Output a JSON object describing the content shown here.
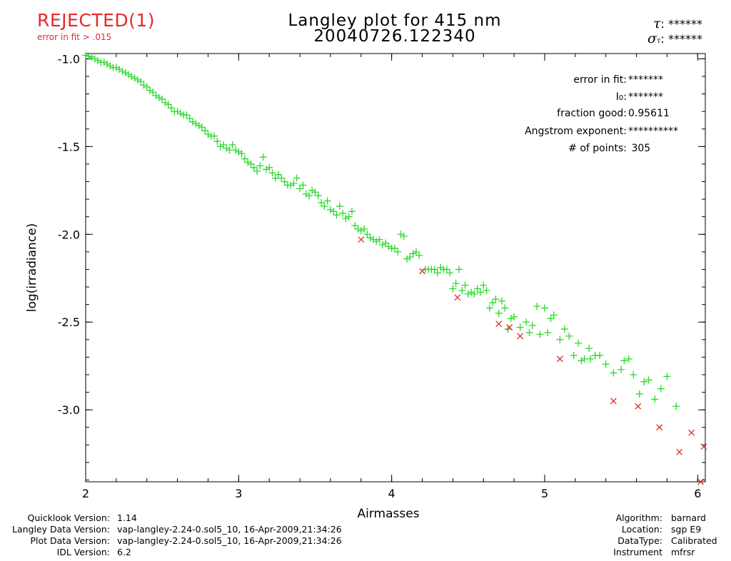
{
  "status": {
    "label": "REJECTED(1)",
    "reason": "error in fit > .015",
    "color": "#e8292b"
  },
  "header": {
    "title_line1": "Langley plot for 415 nm",
    "title_line2": "20040726.122340",
    "tau_label": ":",
    "tau_value": "******",
    "sigma_label": ":",
    "sigma_value": "******"
  },
  "stats": [
    {
      "label": "error in fit:",
      "value": "*******"
    },
    {
      "label": "I0:",
      "value": "*******"
    },
    {
      "label": "fraction good:",
      "value": "0.95611"
    },
    {
      "label": "Angstrom exponent:",
      "value": "**********"
    },
    {
      "label": "# of points:",
      "value": " 305"
    }
  ],
  "footer_left": [
    {
      "label": "Quicklook Version:",
      "value": "1.14"
    },
    {
      "label": "Langley Data Version:",
      "value": "vap-langley-2.24-0.sol5_10, 16-Apr-2009,21:34:26"
    },
    {
      "label": "Plot Data Version:",
      "value": "vap-langley-2.24-0.sol5_10, 16-Apr-2009,21:34:26"
    },
    {
      "label": "IDL Version:",
      "value": "6.2"
    }
  ],
  "footer_right": [
    {
      "label": "Algorithm:",
      "value": "barnard"
    },
    {
      "label": "Location:",
      "value": "sgp E9"
    },
    {
      "label": "DataType:",
      "value": "Calibrated"
    },
    {
      "label": "Instrument",
      "value": "mfrsr"
    }
  ],
  "chart_data": {
    "type": "scatter",
    "xlabel": "Airmasses",
    "ylabel": "log(irradiance)",
    "xlim": [
      2.0,
      6.05
    ],
    "ylim": [
      -3.41,
      -0.97
    ],
    "xticks": [
      2,
      3,
      4,
      5,
      6
    ],
    "yticks": [
      -1.0,
      -1.5,
      -2.0,
      -2.5,
      -3.0
    ],
    "ytick_labels": [
      "-1.0",
      "-1.5",
      "-2.0",
      "-2.5",
      "-3.0"
    ],
    "grid": false,
    "colors": {
      "good": "#2bd82b",
      "rejected": "#d8302b"
    },
    "series": [
      {
        "marker": "plus",
        "points": [
          [
            2.0,
            -0.98
          ],
          [
            2.02,
            -0.985
          ],
          [
            2.04,
            -0.99
          ],
          [
            2.06,
            -1.0
          ],
          [
            2.08,
            -1.01
          ],
          [
            2.1,
            -1.02
          ],
          [
            2.12,
            -1.02
          ],
          [
            2.14,
            -1.03
          ],
          [
            2.16,
            -1.04
          ],
          [
            2.18,
            -1.05
          ],
          [
            2.2,
            -1.05
          ],
          [
            2.22,
            -1.06
          ],
          [
            2.24,
            -1.07
          ],
          [
            2.26,
            -1.08
          ],
          [
            2.28,
            -1.09
          ],
          [
            2.3,
            -1.1
          ],
          [
            2.32,
            -1.11
          ],
          [
            2.34,
            -1.12
          ],
          [
            2.36,
            -1.13
          ],
          [
            2.38,
            -1.15
          ],
          [
            2.4,
            -1.16
          ],
          [
            2.42,
            -1.18
          ],
          [
            2.44,
            -1.19
          ],
          [
            2.46,
            -1.21
          ],
          [
            2.48,
            -1.22
          ],
          [
            2.5,
            -1.23
          ],
          [
            2.52,
            -1.25
          ],
          [
            2.54,
            -1.26
          ],
          [
            2.56,
            -1.28
          ],
          [
            2.58,
            -1.3
          ],
          [
            2.6,
            -1.3
          ],
          [
            2.62,
            -1.31
          ],
          [
            2.64,
            -1.32
          ],
          [
            2.66,
            -1.32
          ],
          [
            2.68,
            -1.34
          ],
          [
            2.7,
            -1.36
          ],
          [
            2.72,
            -1.37
          ],
          [
            2.74,
            -1.38
          ],
          [
            2.76,
            -1.39
          ],
          [
            2.78,
            -1.41
          ],
          [
            2.8,
            -1.43
          ],
          [
            2.82,
            -1.44
          ],
          [
            2.84,
            -1.44
          ],
          [
            2.86,
            -1.47
          ],
          [
            2.88,
            -1.5
          ],
          [
            2.9,
            -1.49
          ],
          [
            2.92,
            -1.51
          ],
          [
            2.94,
            -1.52
          ],
          [
            2.96,
            -1.49
          ],
          [
            2.98,
            -1.52
          ],
          [
            3.0,
            -1.53
          ],
          [
            3.02,
            -1.54
          ],
          [
            3.04,
            -1.57
          ],
          [
            3.06,
            -1.59
          ],
          [
            3.08,
            -1.6
          ],
          [
            3.1,
            -1.62
          ],
          [
            3.12,
            -1.64
          ],
          [
            3.14,
            -1.61
          ],
          [
            3.16,
            -1.56
          ],
          [
            3.18,
            -1.63
          ],
          [
            3.2,
            -1.62
          ],
          [
            3.22,
            -1.65
          ],
          [
            3.24,
            -1.68
          ],
          [
            3.26,
            -1.66
          ],
          [
            3.28,
            -1.68
          ],
          [
            3.3,
            -1.7
          ],
          [
            3.32,
            -1.72
          ],
          [
            3.34,
            -1.72
          ],
          [
            3.36,
            -1.71
          ],
          [
            3.38,
            -1.68
          ],
          [
            3.4,
            -1.74
          ],
          [
            3.42,
            -1.72
          ],
          [
            3.44,
            -1.77
          ],
          [
            3.46,
            -1.78
          ],
          [
            3.48,
            -1.75
          ],
          [
            3.5,
            -1.76
          ],
          [
            3.52,
            -1.78
          ],
          [
            3.54,
            -1.82
          ],
          [
            3.56,
            -1.84
          ],
          [
            3.58,
            -1.81
          ],
          [
            3.6,
            -1.86
          ],
          [
            3.62,
            -1.87
          ],
          [
            3.64,
            -1.89
          ],
          [
            3.66,
            -1.84
          ],
          [
            3.68,
            -1.88
          ],
          [
            3.7,
            -1.91
          ],
          [
            3.72,
            -1.9
          ],
          [
            3.74,
            -1.87
          ],
          [
            3.76,
            -1.95
          ],
          [
            3.78,
            -1.97
          ],
          [
            3.8,
            -1.98
          ],
          [
            3.82,
            -1.97
          ],
          [
            3.84,
            -2.0
          ],
          [
            3.86,
            -2.02
          ],
          [
            3.88,
            -2.03
          ],
          [
            3.9,
            -2.04
          ],
          [
            3.92,
            -2.03
          ],
          [
            3.94,
            -2.06
          ],
          [
            3.96,
            -2.05
          ],
          [
            3.98,
            -2.07
          ],
          [
            4.0,
            -2.08
          ],
          [
            4.02,
            -2.08
          ],
          [
            4.04,
            -2.1
          ],
          [
            4.06,
            -2.0
          ],
          [
            4.08,
            -2.01
          ],
          [
            4.1,
            -2.14
          ],
          [
            4.12,
            -2.13
          ],
          [
            4.14,
            -2.11
          ],
          [
            4.16,
            -2.1
          ],
          [
            4.18,
            -2.12
          ],
          [
            4.22,
            -2.2
          ],
          [
            4.24,
            -2.2
          ],
          [
            4.26,
            -2.2
          ],
          [
            4.28,
            -2.2
          ],
          [
            4.3,
            -2.22
          ],
          [
            4.32,
            -2.19
          ],
          [
            4.34,
            -2.2
          ],
          [
            4.36,
            -2.2
          ],
          [
            4.38,
            -2.22
          ],
          [
            4.4,
            -2.31
          ],
          [
            4.42,
            -2.28
          ],
          [
            4.44,
            -2.2
          ],
          [
            4.46,
            -2.32
          ],
          [
            4.48,
            -2.29
          ],
          [
            4.5,
            -2.34
          ],
          [
            4.52,
            -2.33
          ],
          [
            4.54,
            -2.34
          ],
          [
            4.56,
            -2.31
          ],
          [
            4.58,
            -2.33
          ],
          [
            4.6,
            -2.29
          ],
          [
            4.62,
            -2.32
          ],
          [
            4.64,
            -2.42
          ],
          [
            4.66,
            -2.39
          ],
          [
            4.68,
            -2.37
          ],
          [
            4.7,
            -2.45
          ],
          [
            4.72,
            -2.38
          ],
          [
            4.74,
            -2.42
          ],
          [
            4.76,
            -2.54
          ],
          [
            4.78,
            -2.48
          ],
          [
            4.8,
            -2.47
          ],
          [
            4.84,
            -2.53
          ],
          [
            4.88,
            -2.5
          ],
          [
            4.9,
            -2.56
          ],
          [
            4.92,
            -2.52
          ],
          [
            4.95,
            -2.41
          ],
          [
            4.97,
            -2.57
          ],
          [
            5.0,
            -2.42
          ],
          [
            5.02,
            -2.56
          ],
          [
            5.04,
            -2.48
          ],
          [
            5.06,
            -2.46
          ],
          [
            5.1,
            -2.6
          ],
          [
            5.13,
            -2.54
          ],
          [
            5.16,
            -2.58
          ],
          [
            5.19,
            -2.69
          ],
          [
            5.22,
            -2.62
          ],
          [
            5.24,
            -2.72
          ],
          [
            5.26,
            -2.71
          ],
          [
            5.29,
            -2.65
          ],
          [
            5.3,
            -2.71
          ],
          [
            5.33,
            -2.69
          ],
          [
            5.36,
            -2.69
          ],
          [
            5.4,
            -2.74
          ],
          [
            5.45,
            -2.79
          ],
          [
            5.5,
            -2.77
          ],
          [
            5.52,
            -2.72
          ],
          [
            5.55,
            -2.71
          ],
          [
            5.58,
            -2.8
          ],
          [
            5.62,
            -2.91
          ],
          [
            5.65,
            -2.84
          ],
          [
            5.68,
            -2.83
          ],
          [
            5.72,
            -2.94
          ],
          [
            5.76,
            -2.88
          ],
          [
            5.8,
            -2.81
          ],
          [
            5.86,
            -2.98
          ]
        ]
      },
      {
        "marker": "x",
        "points": [
          [
            3.8,
            -2.03
          ],
          [
            4.2,
            -2.21
          ],
          [
            4.43,
            -2.36
          ],
          [
            4.7,
            -2.51
          ],
          [
            4.77,
            -2.53
          ],
          [
            4.84,
            -2.58
          ],
          [
            5.1,
            -2.71
          ],
          [
            5.45,
            -2.95
          ],
          [
            5.61,
            -2.98
          ],
          [
            5.75,
            -3.1
          ],
          [
            5.88,
            -3.24
          ],
          [
            5.96,
            -3.13
          ],
          [
            6.02,
            -3.41
          ],
          [
            6.04,
            -3.21
          ]
        ]
      }
    ]
  }
}
